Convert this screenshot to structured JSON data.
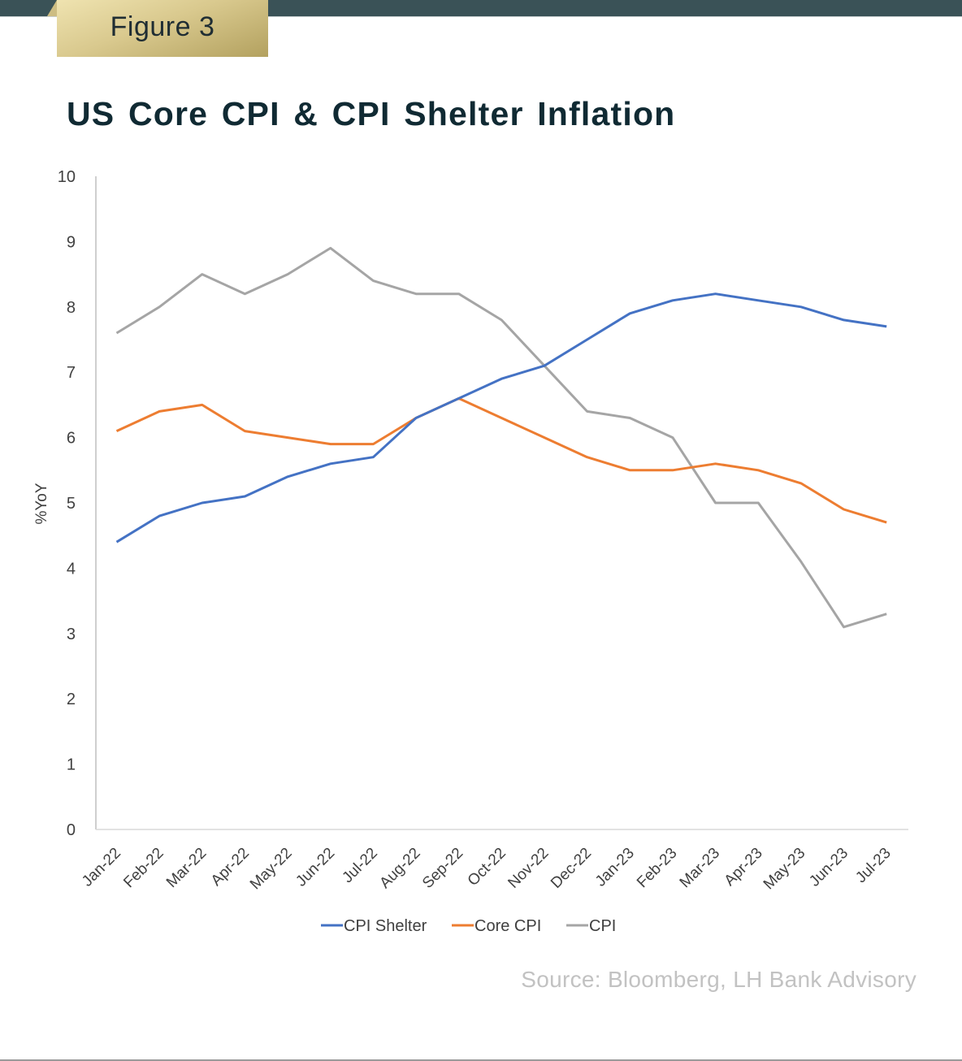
{
  "header": {
    "figure_label": "Figure 3",
    "title": "US Core CPI & CPI Shelter Inflation"
  },
  "footer": {
    "source": "Source: Bloomberg, LH Bank Advisory"
  },
  "chart_data": {
    "type": "line",
    "title": "US Core CPI & CPI Shelter Inflation",
    "xlabel": "",
    "ylabel": "%YoY",
    "ylim": [
      0,
      10
    ],
    "yticks": [
      "0",
      "1",
      "2",
      "3",
      "4",
      "5",
      "6",
      "7",
      "8",
      "9",
      "10"
    ],
    "grid": false,
    "legend_position": "bottom-center",
    "x": [
      "Jan-22",
      "Feb-22",
      "Mar-22",
      "Apr-22",
      "May-22",
      "Jun-22",
      "Jul-22",
      "Aug-22",
      "Sep-22",
      "Oct-22",
      "Nov-22",
      "Dec-22",
      "Jan-23",
      "Feb-23",
      "Mar-23",
      "Apr-23",
      "May-23",
      "Jun-23",
      "Jul-23"
    ],
    "series": [
      {
        "name": "CPI Shelter",
        "color": "#4472c4",
        "values": [
          4.4,
          4.8,
          5.0,
          5.1,
          5.4,
          5.6,
          5.7,
          6.3,
          6.6,
          6.9,
          7.1,
          7.5,
          7.9,
          8.1,
          8.2,
          8.1,
          8.0,
          7.8,
          7.7
        ]
      },
      {
        "name": "Core CPI",
        "color": "#ed7d31",
        "values": [
          6.1,
          6.4,
          6.5,
          6.1,
          6.0,
          5.9,
          5.9,
          6.3,
          6.6,
          6.3,
          6.0,
          5.7,
          5.5,
          5.5,
          5.6,
          5.5,
          5.3,
          4.9,
          4.7
        ]
      },
      {
        "name": "CPI",
        "color": "#a5a5a5",
        "values": [
          7.6,
          8.0,
          8.5,
          8.2,
          8.5,
          8.9,
          8.4,
          8.2,
          8.2,
          7.8,
          7.1,
          6.4,
          6.3,
          6.0,
          5.0,
          5.0,
          4.1,
          3.1,
          3.3
        ]
      }
    ]
  }
}
